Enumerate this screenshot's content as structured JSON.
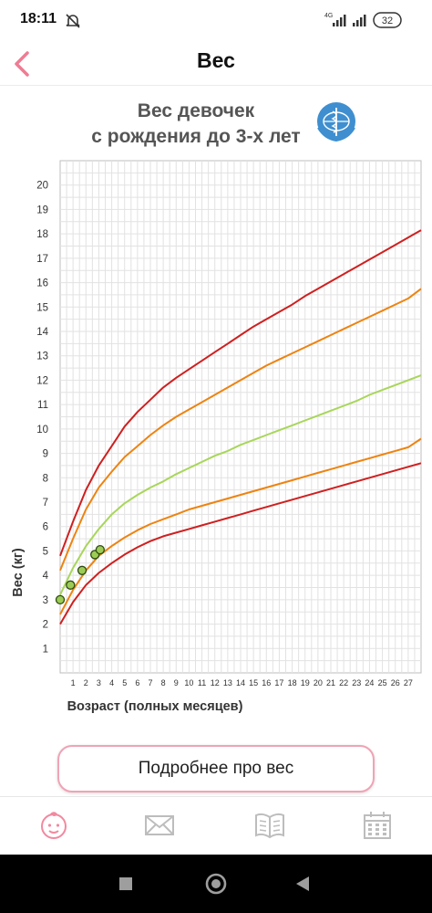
{
  "status_bar": {
    "time": "18:11",
    "network": "4G",
    "battery": "32"
  },
  "header": {
    "title": "Вес"
  },
  "chart_data": {
    "type": "line",
    "title_line1": "Вес девочек",
    "title_line2": "с рождения до 3-х лет",
    "xlabel": "Возраст (полных месяцев)",
    "ylabel": "Вес (кг)",
    "xlim": [
      0,
      28
    ],
    "ylim": [
      0,
      21
    ],
    "x_ticks": [
      1,
      2,
      3,
      4,
      5,
      6,
      7,
      8,
      9,
      10,
      11,
      12,
      13,
      14,
      15,
      16,
      17,
      18,
      19,
      20,
      21,
      22,
      23,
      24,
      25,
      26,
      27
    ],
    "y_ticks": [
      1,
      2,
      3,
      4,
      5,
      6,
      7,
      8,
      9,
      10,
      11,
      12,
      13,
      14,
      15,
      16,
      17,
      18,
      19,
      20
    ],
    "grid": true,
    "x": [
      0,
      1,
      2,
      3,
      4,
      5,
      6,
      7,
      8,
      9,
      10,
      11,
      12,
      13,
      14,
      15,
      16,
      17,
      18,
      19,
      20,
      21,
      22,
      23,
      24,
      25,
      26,
      27,
      28
    ],
    "series": [
      {
        "color": "#d01f1f",
        "values": [
          4.8,
          6.2,
          7.5,
          8.5,
          9.3,
          10.1,
          10.7,
          11.2,
          11.7,
          12.1,
          12.45,
          12.8,
          13.15,
          13.5,
          13.85,
          14.2,
          14.5,
          14.8,
          15.1,
          15.45,
          15.75,
          16.05,
          16.35,
          16.65,
          16.95,
          17.25,
          17.55,
          17.85,
          18.15
        ]
      },
      {
        "color": "#ee8310",
        "values": [
          4.2,
          5.5,
          6.7,
          7.6,
          8.25,
          8.85,
          9.3,
          9.75,
          10.15,
          10.5,
          10.8,
          11.1,
          11.4,
          11.7,
          12.0,
          12.3,
          12.6,
          12.85,
          13.1,
          13.35,
          13.6,
          13.85,
          14.1,
          14.35,
          14.6,
          14.85,
          15.1,
          15.35,
          15.75
        ]
      },
      {
        "color": "#a8d65a",
        "values": [
          3.2,
          4.3,
          5.2,
          5.9,
          6.5,
          6.95,
          7.3,
          7.6,
          7.85,
          8.15,
          8.4,
          8.65,
          8.9,
          9.1,
          9.35,
          9.55,
          9.75,
          9.95,
          10.15,
          10.35,
          10.55,
          10.75,
          10.95,
          11.15,
          11.4,
          11.6,
          11.8,
          12.0,
          12.2
        ]
      },
      {
        "color": "#ee8310",
        "values": [
          2.4,
          3.4,
          4.2,
          4.8,
          5.2,
          5.55,
          5.85,
          6.1,
          6.3,
          6.5,
          6.7,
          6.85,
          7.0,
          7.15,
          7.3,
          7.45,
          7.6,
          7.75,
          7.9,
          8.05,
          8.2,
          8.35,
          8.5,
          8.65,
          8.8,
          8.95,
          9.1,
          9.25,
          9.6
        ]
      },
      {
        "color": "#d01f1f",
        "values": [
          2.0,
          2.9,
          3.6,
          4.1,
          4.5,
          4.85,
          5.15,
          5.4,
          5.6,
          5.75,
          5.9,
          6.05,
          6.2,
          6.35,
          6.5,
          6.65,
          6.8,
          6.95,
          7.1,
          7.25,
          7.4,
          7.55,
          7.7,
          7.85,
          8.0,
          8.15,
          8.3,
          8.45,
          8.6
        ]
      }
    ],
    "measurements": {
      "color": "#9ccc55",
      "points": [
        {
          "x": 0,
          "y": 3.0
        },
        {
          "x": 0.8,
          "y": 3.6
        },
        {
          "x": 1.7,
          "y": 4.2
        },
        {
          "x": 2.7,
          "y": 4.85
        },
        {
          "x": 3.1,
          "y": 5.05
        }
      ]
    }
  },
  "actions": {
    "more_label": "Подробнее про вес"
  },
  "nav": {
    "items": [
      {
        "name": "baby",
        "icon": "baby-face-icon",
        "color": "#f2899f"
      },
      {
        "name": "messages",
        "icon": "envelope-icon",
        "color": "#bdbdbd"
      },
      {
        "name": "articles",
        "icon": "book-icon",
        "color": "#bdbdbd"
      },
      {
        "name": "calendar",
        "icon": "calendar-icon",
        "color": "#bdbdbd"
      }
    ]
  }
}
